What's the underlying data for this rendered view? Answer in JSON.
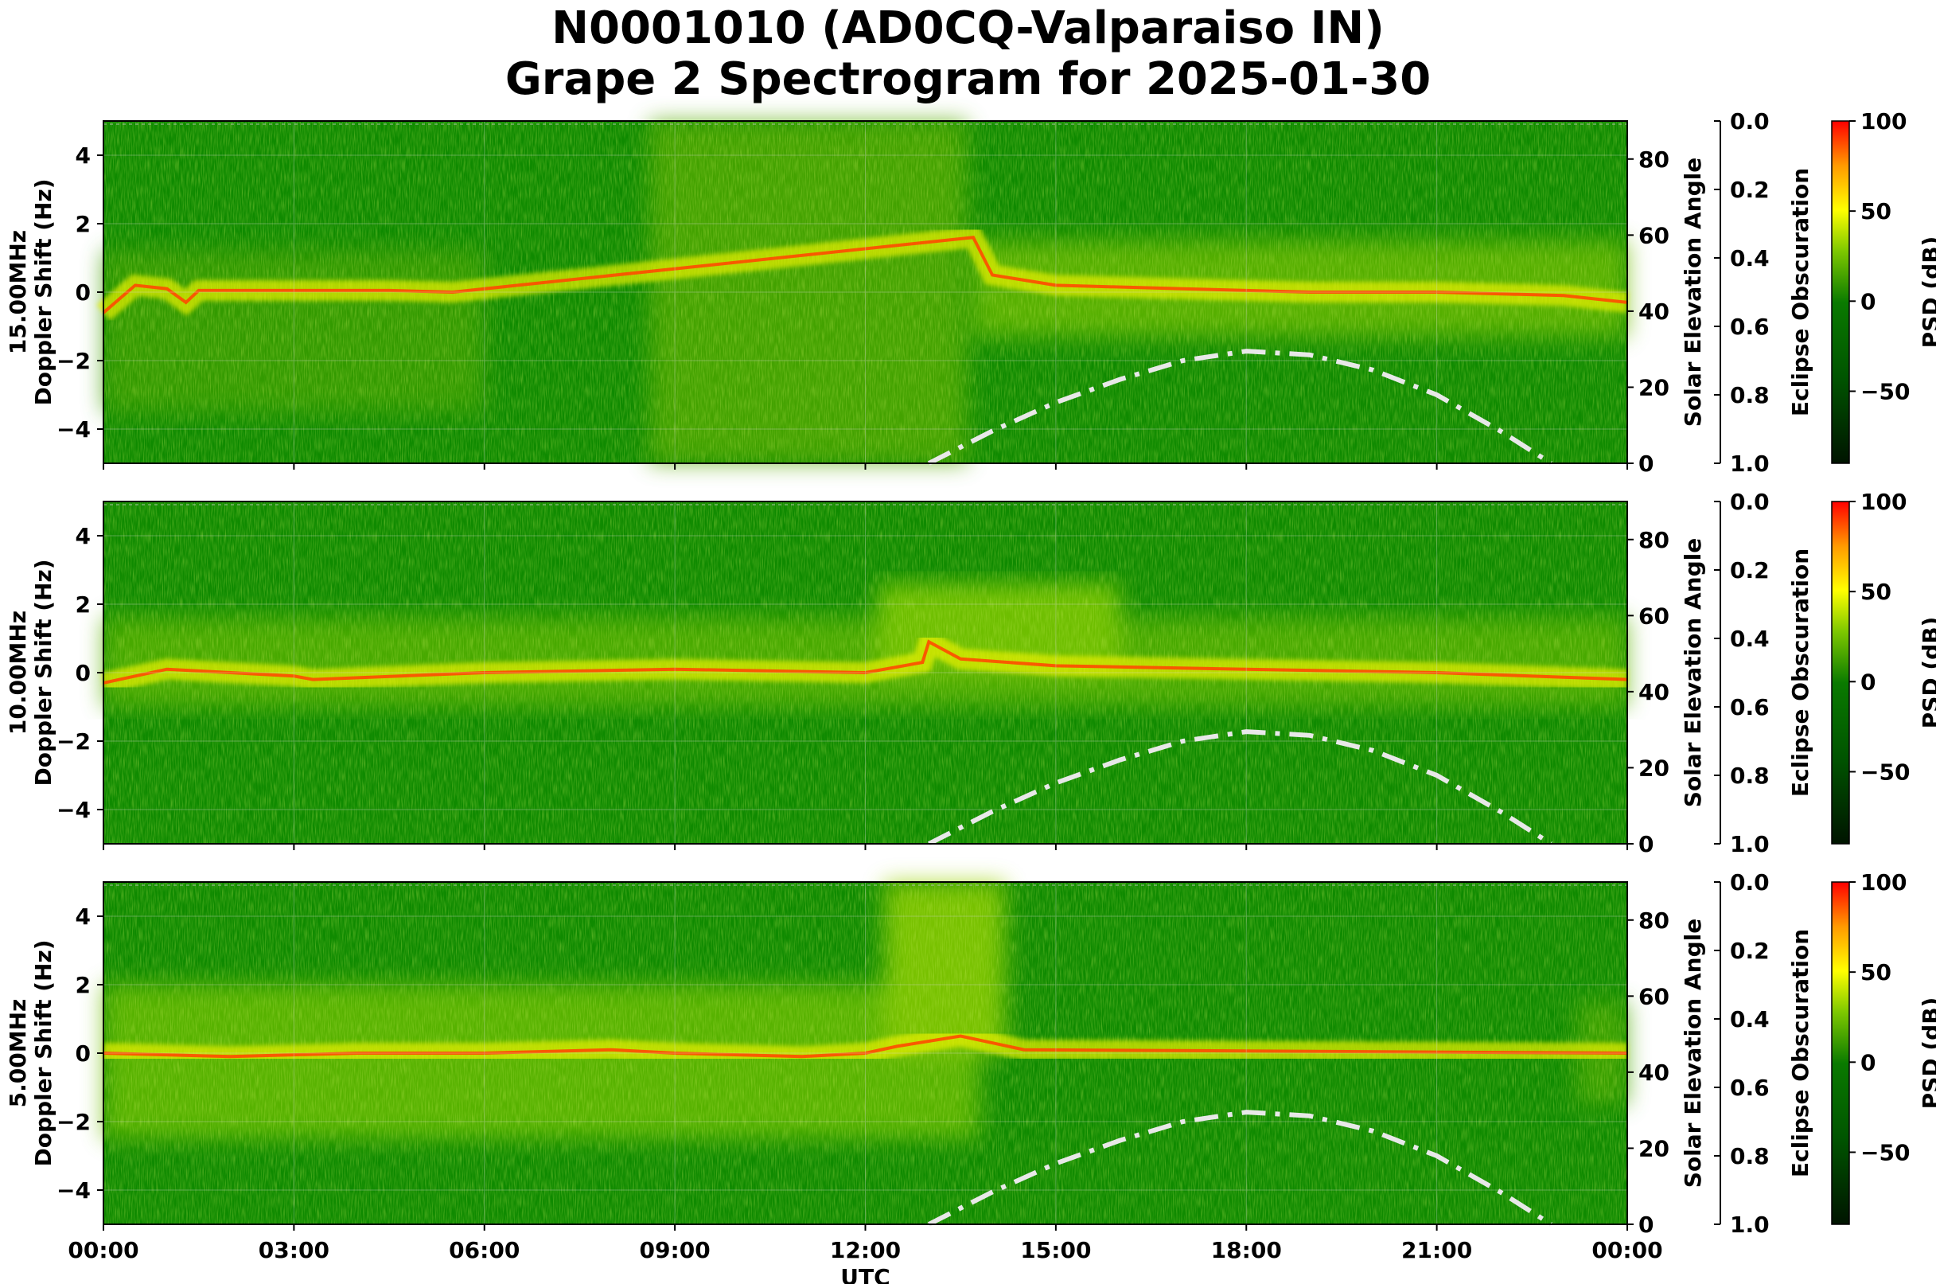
{
  "chart_data": [
    {
      "type": "heatmap",
      "title": "N0001010 (AD0CQ-Valparaiso IN)",
      "subtitle": "Grape 2 Spectrogram for 2025-01-30",
      "band": "15.00MHz",
      "ylabel": "Doppler Shift (Hz)",
      "y2label": "Solar Elevation Angle",
      "y3label": "Eclipse Obscuration",
      "colorbar_label": "PSD (dB)",
      "xlabel": "UTC",
      "xticks": [
        "00:00",
        "03:00",
        "06:00",
        "09:00",
        "12:00",
        "15:00",
        "18:00",
        "21:00",
        "00:00"
      ],
      "yticks": [
        "4",
        "2",
        "0",
        "−2",
        "−4"
      ],
      "y2ticks": [
        "80",
        "60",
        "40",
        "20",
        "0"
      ],
      "y3ticks": [
        "0.0",
        "0.2",
        "0.4",
        "0.6",
        "0.8",
        "1.0"
      ],
      "cbticks": [
        "100",
        "50",
        "0",
        "−50"
      ],
      "ylim": [
        -5,
        5
      ],
      "y2lim": [
        0,
        90
      ],
      "y3lim": [
        1.0,
        0.0
      ],
      "cblim": [
        -90,
        100
      ],
      "grid": true,
      "doppler_trace": {
        "x": [
          0,
          0.5,
          1.0,
          1.3,
          1.5,
          3,
          4.5,
          5.5,
          13.7,
          14.0,
          15,
          17,
          19,
          21,
          23,
          24
        ],
        "y": [
          -0.6,
          0.2,
          0.1,
          -0.3,
          0.05,
          0.05,
          0.05,
          0.0,
          1.6,
          0.5,
          0.2,
          0.1,
          0.0,
          0.0,
          -0.1,
          -0.3
        ]
      },
      "solar_elevation": {
        "x": [
          13.0,
          14,
          15,
          16,
          17,
          18,
          19,
          20,
          21,
          22,
          22.8
        ],
        "y": [
          0,
          8.5,
          16,
          22,
          27,
          29.5,
          28.5,
          24.5,
          18,
          8.5,
          0
        ]
      }
    },
    {
      "type": "heatmap",
      "band": "10.00MHz",
      "ylabel": "Doppler Shift (Hz)",
      "y2label": "Solar Elevation Angle",
      "y3label": "Eclipse Obscuration",
      "colorbar_label": "PSD (dB)",
      "xticks": [
        "00:00",
        "03:00",
        "06:00",
        "09:00",
        "12:00",
        "15:00",
        "18:00",
        "21:00",
        "00:00"
      ],
      "yticks": [
        "4",
        "2",
        "0",
        "−2",
        "−4"
      ],
      "y2ticks": [
        "80",
        "60",
        "40",
        "20",
        "0"
      ],
      "y3ticks": [
        "0.0",
        "0.2",
        "0.4",
        "0.6",
        "0.8",
        "1.0"
      ],
      "cbticks": [
        "100",
        "50",
        "0",
        "−50"
      ],
      "ylim": [
        -5,
        5
      ],
      "y2lim": [
        0,
        90
      ],
      "y3lim": [
        1.0,
        0.0
      ],
      "cblim": [
        -90,
        100
      ],
      "grid": true,
      "doppler_trace": {
        "x": [
          0,
          1,
          2,
          3,
          3.3,
          6,
          9,
          12,
          12.9,
          13.0,
          13.5,
          15,
          18,
          21,
          24
        ],
        "y": [
          -0.3,
          0.1,
          0.0,
          -0.1,
          -0.2,
          0.0,
          0.1,
          0.0,
          0.3,
          0.9,
          0.4,
          0.2,
          0.1,
          0.0,
          -0.2
        ]
      },
      "solar_elevation": {
        "x": [
          13.0,
          14,
          15,
          16,
          17,
          18,
          19,
          20,
          21,
          22,
          22.8
        ],
        "y": [
          0,
          8.5,
          16,
          22,
          27,
          29.5,
          28.5,
          24.5,
          18,
          8.5,
          0
        ]
      }
    },
    {
      "type": "heatmap",
      "band": "5.00MHz",
      "ylabel": "Doppler Shift (Hz)",
      "y2label": "Solar Elevation Angle",
      "y3label": "Eclipse Obscuration",
      "colorbar_label": "PSD (dB)",
      "xlabel": "UTC",
      "xticks": [
        "00:00",
        "03:00",
        "06:00",
        "09:00",
        "12:00",
        "15:00",
        "18:00",
        "21:00",
        "00:00"
      ],
      "yticks": [
        "4",
        "2",
        "0",
        "−2",
        "−4"
      ],
      "y2ticks": [
        "80",
        "60",
        "40",
        "20",
        "0"
      ],
      "y3ticks": [
        "0.0",
        "0.2",
        "0.4",
        "0.6",
        "0.8",
        "1.0"
      ],
      "cbticks": [
        "100",
        "50",
        "0",
        "−50"
      ],
      "ylim": [
        -5,
        5
      ],
      "y2lim": [
        0,
        90
      ],
      "y3lim": [
        1.0,
        0.0
      ],
      "cblim": [
        -90,
        100
      ],
      "grid": true,
      "doppler_trace": {
        "x": [
          0,
          2,
          4,
          6,
          8,
          9,
          11,
          12,
          12.5,
          13.5,
          14.5,
          24
        ],
        "y": [
          0.0,
          -0.1,
          0.0,
          0.0,
          0.1,
          0.0,
          -0.1,
          0.0,
          0.2,
          0.5,
          0.1,
          0.0
        ]
      },
      "solar_elevation": {
        "x": [
          13.0,
          14,
          15,
          16,
          17,
          18,
          19,
          20,
          21,
          22,
          22.8
        ],
        "y": [
          0,
          8.5,
          16,
          22,
          27,
          29.5,
          28.5,
          24.5,
          18,
          8.5,
          0
        ]
      }
    }
  ]
}
